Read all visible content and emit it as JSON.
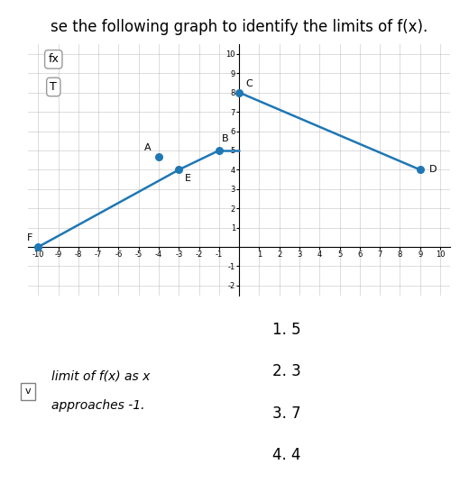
{
  "chart_data": {
    "type": "line",
    "title": "se the following graph to identify the limits of f(x).",
    "series": [
      {
        "x": [
          -10,
          -3
        ],
        "values": [
          0,
          4
        ]
      },
      {
        "x": [
          -3,
          -1
        ],
        "values": [
          4,
          5
        ]
      },
      {
        "x": [
          -1,
          0
        ],
        "values": [
          5,
          5
        ]
      },
      {
        "x": [
          0,
          9
        ],
        "values": [
          8,
          4
        ]
      }
    ],
    "points": [
      {
        "x": -10,
        "y": 0,
        "label": "F"
      },
      {
        "x": -4,
        "y": 4.667,
        "label": "A"
      },
      {
        "x": -3,
        "y": 4,
        "label": "E"
      },
      {
        "x": -1,
        "y": 5,
        "label": "B"
      },
      {
        "x": 0,
        "y": 8,
        "label": "C"
      },
      {
        "x": 9,
        "y": 4,
        "label": "D"
      }
    ],
    "xlim": [
      -10.5,
      10.5
    ],
    "ylim": [
      -2.5,
      10.5
    ],
    "xticks": [
      -10,
      -9,
      -8,
      -7,
      -6,
      -5,
      -4,
      -3,
      -2,
      -1,
      1,
      2,
      3,
      4,
      5,
      6,
      7,
      8,
      9,
      10
    ],
    "yticks": [
      -2,
      -1,
      1,
      2,
      3,
      4,
      5,
      6,
      7,
      8,
      9,
      10
    ],
    "grid": true,
    "annotations": {
      "buttons": [
        "fx",
        "T"
      ],
      "dropdown": "v",
      "question": [
        "limit of f(x) as x",
        "approaches -1."
      ],
      "answers": [
        "1. 5",
        "2. 3",
        "3. 7",
        "4. 4"
      ]
    }
  }
}
